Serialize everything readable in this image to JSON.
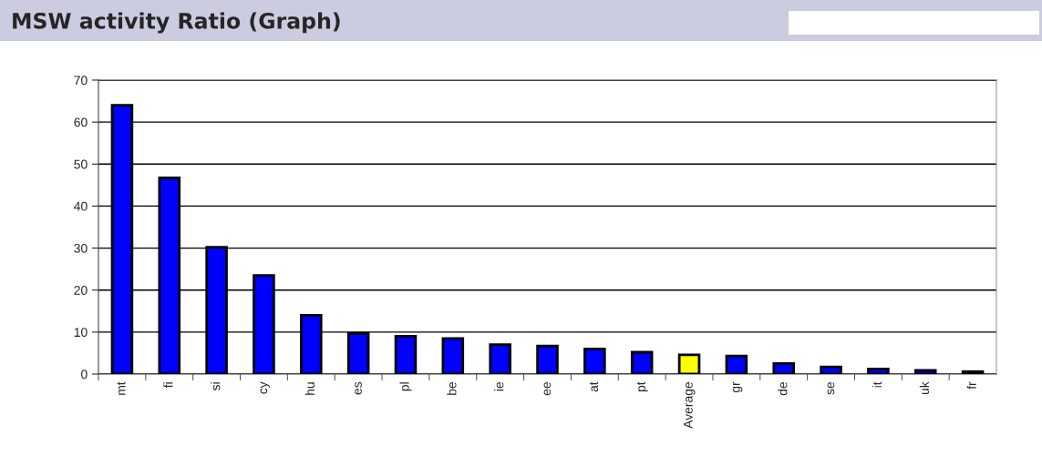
{
  "chart_data": {
    "type": "bar",
    "title": "MSW activity Ratio (Graph)",
    "categories": [
      "mt",
      "fi",
      "si",
      "cy",
      "hu",
      "es",
      "pl",
      "be",
      "ie",
      "ee",
      "at",
      "pt",
      "Average",
      "gr",
      "de",
      "se",
      "it",
      "uk",
      "fr"
    ],
    "values": [
      64,
      46.7,
      30.2,
      23.5,
      14,
      9.7,
      9,
      8.5,
      7,
      6.7,
      6,
      5.2,
      4.6,
      4.3,
      2.5,
      1.7,
      1.2,
      0.9,
      0.6
    ],
    "colors": [
      "#0000ff",
      "#0000ff",
      "#0000ff",
      "#0000ff",
      "#0000ff",
      "#0000ff",
      "#0000ff",
      "#0000ff",
      "#0000ff",
      "#0000ff",
      "#0000ff",
      "#0000ff",
      "#ffff00",
      "#0000ff",
      "#0000ff",
      "#0000ff",
      "#0000ff",
      "#0000ff",
      "#0000ff"
    ],
    "ylim": [
      0,
      70
    ],
    "yticks": [
      0,
      10,
      20,
      30,
      40,
      50,
      60,
      70
    ],
    "grid": "y"
  }
}
